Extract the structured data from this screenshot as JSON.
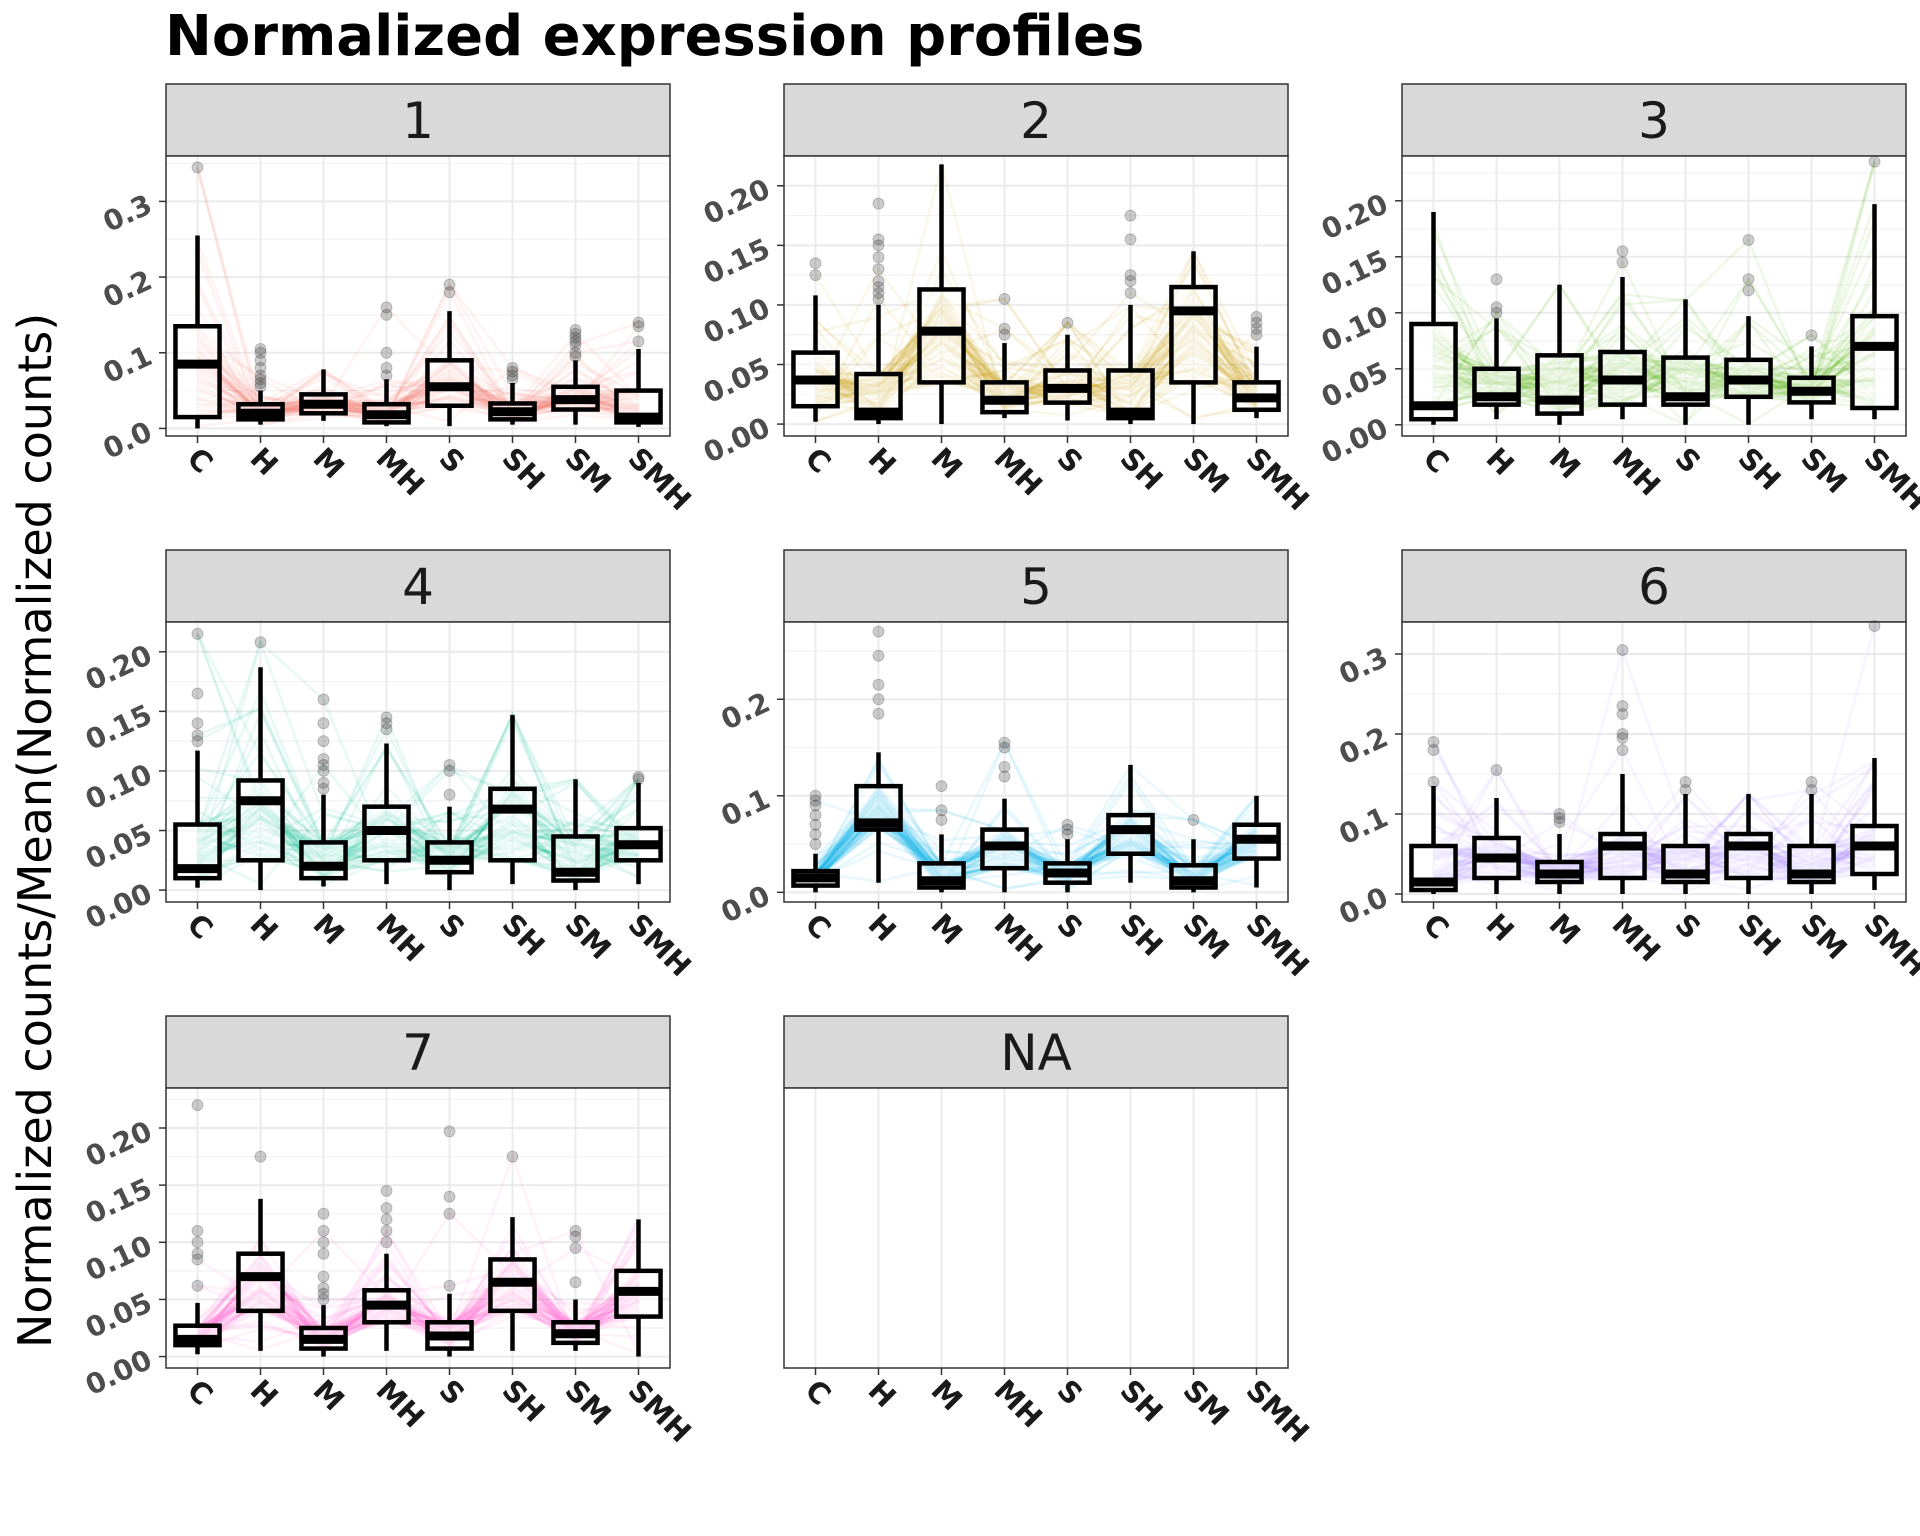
{
  "chart_data": {
    "type": "box",
    "title": "Normalized expression profiles",
    "ylabel": "Normalized counts/Mean(Normalized counts)",
    "categories": [
      "C",
      "H",
      "M",
      "MH",
      "S",
      "SH",
      "SM",
      "SMH"
    ],
    "grid": true,
    "panels": [
      {
        "label": "1",
        "color": "#F8766D",
        "ylim": [
          -0.01,
          0.36
        ],
        "yticks": [
          0.0,
          0.1,
          0.2,
          0.3
        ],
        "tick_labels": [
          "0.0",
          "0.1",
          "0.2",
          "0.3"
        ],
        "boxes": [
          {
            "low": 0.0,
            "q1": 0.015,
            "median": 0.085,
            "q3": 0.135,
            "high": 0.255,
            "outliers": [
              0.345
            ]
          },
          {
            "low": 0.005,
            "q1": 0.012,
            "median": 0.02,
            "q3": 0.032,
            "high": 0.05,
            "outliers": [
              0.055,
              0.06,
              0.065,
              0.07,
              0.08,
              0.09,
              0.1,
              0.105
            ]
          },
          {
            "low": 0.01,
            "q1": 0.02,
            "median": 0.032,
            "q3": 0.045,
            "high": 0.078,
            "outliers": []
          },
          {
            "low": 0.003,
            "q1": 0.008,
            "median": 0.018,
            "q3": 0.032,
            "high": 0.065,
            "outliers": [
              0.07,
              0.08,
              0.1,
              0.15,
              0.16
            ]
          },
          {
            "low": 0.003,
            "q1": 0.03,
            "median": 0.055,
            "q3": 0.09,
            "high": 0.155,
            "outliers": [
              0.18,
              0.19
            ]
          },
          {
            "low": 0.005,
            "q1": 0.012,
            "median": 0.022,
            "q3": 0.033,
            "high": 0.06,
            "outliers": [
              0.065,
              0.07,
              0.075,
              0.08
            ]
          },
          {
            "low": 0.005,
            "q1": 0.025,
            "median": 0.038,
            "q3": 0.055,
            "high": 0.09,
            "outliers": [
              0.095,
              0.1,
              0.11,
              0.115,
              0.12,
              0.125,
              0.13
            ]
          },
          {
            "low": 0.002,
            "q1": 0.008,
            "median": 0.015,
            "q3": 0.05,
            "high": 0.105,
            "outliers": [
              0.115,
              0.135,
              0.14
            ]
          }
        ]
      },
      {
        "label": "2",
        "color": "#C49A00",
        "ylim": [
          -0.01,
          0.225
        ],
        "yticks": [
          0.0,
          0.05,
          0.1,
          0.15,
          0.2
        ],
        "tick_labels": [
          "0.00",
          "0.05",
          "0.10",
          "0.15",
          "0.20"
        ],
        "boxes": [
          {
            "low": 0.002,
            "q1": 0.015,
            "median": 0.037,
            "q3": 0.06,
            "high": 0.108,
            "outliers": [
              0.125,
              0.135
            ]
          },
          {
            "low": 0.0,
            "q1": 0.005,
            "median": 0.01,
            "q3": 0.042,
            "high": 0.1,
            "outliers": [
              0.105,
              0.11,
              0.115,
              0.12,
              0.13,
              0.14,
              0.15,
              0.155,
              0.185
            ]
          },
          {
            "low": 0.0,
            "q1": 0.035,
            "median": 0.078,
            "q3": 0.113,
            "high": 0.218,
            "outliers": []
          },
          {
            "low": 0.005,
            "q1": 0.01,
            "median": 0.02,
            "q3": 0.035,
            "high": 0.068,
            "outliers": [
              0.075,
              0.08,
              0.105
            ]
          },
          {
            "low": 0.003,
            "q1": 0.018,
            "median": 0.03,
            "q3": 0.045,
            "high": 0.075,
            "outliers": [
              0.085
            ]
          },
          {
            "low": 0.0,
            "q1": 0.005,
            "median": 0.01,
            "q3": 0.045,
            "high": 0.1,
            "outliers": [
              0.11,
              0.12,
              0.125,
              0.155,
              0.175
            ]
          },
          {
            "low": 0.0,
            "q1": 0.035,
            "median": 0.095,
            "q3": 0.115,
            "high": 0.145,
            "outliers": []
          },
          {
            "low": 0.005,
            "q1": 0.012,
            "median": 0.022,
            "q3": 0.035,
            "high": 0.065,
            "outliers": [
              0.075,
              0.08,
              0.085,
              0.09
            ]
          }
        ]
      },
      {
        "label": "3",
        "color": "#53B400",
        "ylim": [
          -0.01,
          0.24
        ],
        "yticks": [
          0.0,
          0.05,
          0.1,
          0.15,
          0.2
        ],
        "tick_labels": [
          "0.00",
          "0.05",
          "0.10",
          "0.15",
          "0.20"
        ],
        "boxes": [
          {
            "low": 0.0,
            "q1": 0.005,
            "median": 0.017,
            "q3": 0.09,
            "high": 0.19,
            "outliers": []
          },
          {
            "low": 0.005,
            "q1": 0.018,
            "median": 0.025,
            "q3": 0.05,
            "high": 0.095,
            "outliers": [
              0.1,
              0.105,
              0.13
            ]
          },
          {
            "low": 0.0,
            "q1": 0.01,
            "median": 0.022,
            "q3": 0.062,
            "high": 0.125,
            "outliers": []
          },
          {
            "low": 0.005,
            "q1": 0.018,
            "median": 0.04,
            "q3": 0.065,
            "high": 0.132,
            "outliers": [
              0.145,
              0.155
            ]
          },
          {
            "low": 0.0,
            "q1": 0.018,
            "median": 0.025,
            "q3": 0.06,
            "high": 0.112,
            "outliers": []
          },
          {
            "low": 0.0,
            "q1": 0.025,
            "median": 0.04,
            "q3": 0.058,
            "high": 0.097,
            "outliers": [
              0.12,
              0.13,
              0.165
            ]
          },
          {
            "low": 0.005,
            "q1": 0.02,
            "median": 0.03,
            "q3": 0.042,
            "high": 0.07,
            "outliers": [
              0.08
            ]
          },
          {
            "low": 0.005,
            "q1": 0.015,
            "median": 0.07,
            "q3": 0.097,
            "high": 0.197,
            "outliers": [
              0.235
            ]
          }
        ]
      },
      {
        "label": "4",
        "color": "#00C094",
        "ylim": [
          -0.01,
          0.225
        ],
        "yticks": [
          0.0,
          0.05,
          0.1,
          0.15,
          0.2
        ],
        "tick_labels": [
          "0.00",
          "0.05",
          "0.10",
          "0.15",
          "0.20"
        ],
        "boxes": [
          {
            "low": 0.002,
            "q1": 0.01,
            "median": 0.018,
            "q3": 0.055,
            "high": 0.117,
            "outliers": [
              0.125,
              0.13,
              0.14,
              0.165,
              0.215
            ]
          },
          {
            "low": 0.0,
            "q1": 0.025,
            "median": 0.075,
            "q3": 0.092,
            "high": 0.187,
            "outliers": [
              0.208
            ]
          },
          {
            "low": 0.003,
            "q1": 0.01,
            "median": 0.02,
            "q3": 0.04,
            "high": 0.08,
            "outliers": [
              0.085,
              0.09,
              0.1,
              0.105,
              0.11,
              0.125,
              0.14,
              0.16
            ]
          },
          {
            "low": 0.005,
            "q1": 0.025,
            "median": 0.05,
            "q3": 0.07,
            "high": 0.123,
            "outliers": [
              0.135,
              0.14,
              0.145
            ]
          },
          {
            "low": 0.0,
            "q1": 0.015,
            "median": 0.025,
            "q3": 0.04,
            "high": 0.07,
            "outliers": [
              0.08,
              0.1,
              0.105
            ]
          },
          {
            "low": 0.005,
            "q1": 0.025,
            "median": 0.068,
            "q3": 0.085,
            "high": 0.147,
            "outliers": []
          },
          {
            "low": 0.0,
            "q1": 0.008,
            "median": 0.015,
            "q3": 0.045,
            "high": 0.093,
            "outliers": []
          },
          {
            "low": 0.005,
            "q1": 0.025,
            "median": 0.038,
            "q3": 0.052,
            "high": 0.09,
            "outliers": [
              0.093,
              0.095
            ]
          }
        ]
      },
      {
        "label": "5",
        "color": "#00B6EB",
        "ylim": [
          -0.01,
          0.28
        ],
        "yticks": [
          0.0,
          0.1,
          0.2
        ],
        "tick_labels": [
          "0.0",
          "0.1",
          "0.2"
        ],
        "boxes": [
          {
            "low": 0.0,
            "q1": 0.007,
            "median": 0.015,
            "q3": 0.022,
            "high": 0.04,
            "outliers": [
              0.05,
              0.06,
              0.07,
              0.08,
              0.09,
              0.095,
              0.1
            ]
          },
          {
            "low": 0.01,
            "q1": 0.065,
            "median": 0.072,
            "q3": 0.11,
            "high": 0.145,
            "outliers": [
              0.185,
              0.2,
              0.215,
              0.245,
              0.27
            ]
          },
          {
            "low": 0.0,
            "q1": 0.005,
            "median": 0.012,
            "q3": 0.03,
            "high": 0.06,
            "outliers": [
              0.075,
              0.085,
              0.11
            ]
          },
          {
            "low": 0.0,
            "q1": 0.025,
            "median": 0.048,
            "q3": 0.065,
            "high": 0.097,
            "outliers": [
              0.12,
              0.13,
              0.15,
              0.155
            ]
          },
          {
            "low": 0.0,
            "q1": 0.01,
            "median": 0.02,
            "q3": 0.03,
            "high": 0.055,
            "outliers": [
              0.06,
              0.065,
              0.07
            ]
          },
          {
            "low": 0.01,
            "q1": 0.04,
            "median": 0.065,
            "q3": 0.08,
            "high": 0.132,
            "outliers": []
          },
          {
            "low": 0.0,
            "q1": 0.005,
            "median": 0.012,
            "q3": 0.028,
            "high": 0.055,
            "outliers": [
              0.075
            ]
          },
          {
            "low": 0.005,
            "q1": 0.035,
            "median": 0.055,
            "q3": 0.07,
            "high": 0.1,
            "outliers": []
          }
        ]
      },
      {
        "label": "6",
        "color": "#A58AFF",
        "ylim": [
          -0.01,
          0.34
        ],
        "yticks": [
          0.0,
          0.1,
          0.2,
          0.3
        ],
        "tick_labels": [
          "0.0",
          "0.1",
          "0.2",
          "0.3"
        ],
        "boxes": [
          {
            "low": 0.0,
            "q1": 0.005,
            "median": 0.015,
            "q3": 0.06,
            "high": 0.135,
            "outliers": [
              0.14,
              0.18,
              0.19
            ]
          },
          {
            "low": 0.0,
            "q1": 0.02,
            "median": 0.045,
            "q3": 0.07,
            "high": 0.12,
            "outliers": [
              0.155
            ]
          },
          {
            "low": 0.0,
            "q1": 0.015,
            "median": 0.025,
            "q3": 0.04,
            "high": 0.075,
            "outliers": [
              0.09,
              0.095,
              0.1
            ]
          },
          {
            "low": 0.0,
            "q1": 0.02,
            "median": 0.06,
            "q3": 0.075,
            "high": 0.15,
            "outliers": [
              0.18,
              0.195,
              0.2,
              0.225,
              0.235,
              0.305
            ]
          },
          {
            "low": 0.0,
            "q1": 0.015,
            "median": 0.025,
            "q3": 0.06,
            "high": 0.125,
            "outliers": [
              0.13,
              0.14
            ]
          },
          {
            "low": 0.0,
            "q1": 0.02,
            "median": 0.06,
            "q3": 0.075,
            "high": 0.125,
            "outliers": []
          },
          {
            "low": 0.0,
            "q1": 0.015,
            "median": 0.025,
            "q3": 0.06,
            "high": 0.125,
            "outliers": [
              0.13,
              0.14
            ]
          },
          {
            "low": 0.005,
            "q1": 0.025,
            "median": 0.06,
            "q3": 0.085,
            "high": 0.17,
            "outliers": [
              0.335
            ]
          }
        ]
      },
      {
        "label": "7",
        "color": "#FB61D7",
        "ylim": [
          -0.01,
          0.235
        ],
        "yticks": [
          0.0,
          0.05,
          0.1,
          0.15,
          0.2
        ],
        "tick_labels": [
          "0.00",
          "0.05",
          "0.10",
          "0.15",
          "0.20"
        ],
        "boxes": [
          {
            "low": 0.002,
            "q1": 0.01,
            "median": 0.015,
            "q3": 0.027,
            "high": 0.047,
            "outliers": [
              0.062,
              0.085,
              0.09,
              0.1,
              0.11,
              0.22
            ]
          },
          {
            "low": 0.005,
            "q1": 0.04,
            "median": 0.07,
            "q3": 0.09,
            "high": 0.138,
            "outliers": [
              0.175
            ]
          },
          {
            "low": 0.0,
            "q1": 0.007,
            "median": 0.015,
            "q3": 0.025,
            "high": 0.045,
            "outliers": [
              0.05,
              0.055,
              0.06,
              0.07,
              0.09,
              0.1,
              0.11,
              0.125
            ]
          },
          {
            "low": 0.005,
            "q1": 0.03,
            "median": 0.045,
            "q3": 0.058,
            "high": 0.09,
            "outliers": [
              0.1,
              0.11,
              0.12,
              0.13,
              0.145
            ]
          },
          {
            "low": 0.0,
            "q1": 0.007,
            "median": 0.018,
            "q3": 0.03,
            "high": 0.055,
            "outliers": [
              0.062,
              0.125,
              0.14,
              0.197
            ]
          },
          {
            "low": 0.005,
            "q1": 0.04,
            "median": 0.065,
            "q3": 0.085,
            "high": 0.122,
            "outliers": [
              0.175
            ]
          },
          {
            "low": 0.005,
            "q1": 0.012,
            "median": 0.02,
            "q3": 0.03,
            "high": 0.05,
            "outliers": [
              0.065,
              0.095,
              0.105,
              0.11
            ]
          },
          {
            "low": 0.0,
            "q1": 0.035,
            "median": 0.057,
            "q3": 0.075,
            "high": 0.12,
            "outliers": []
          }
        ]
      },
      {
        "label": "NA",
        "color": "#999999",
        "ylim": [
          0,
          1
        ],
        "yticks": [],
        "tick_labels": [],
        "boxes": []
      }
    ]
  }
}
